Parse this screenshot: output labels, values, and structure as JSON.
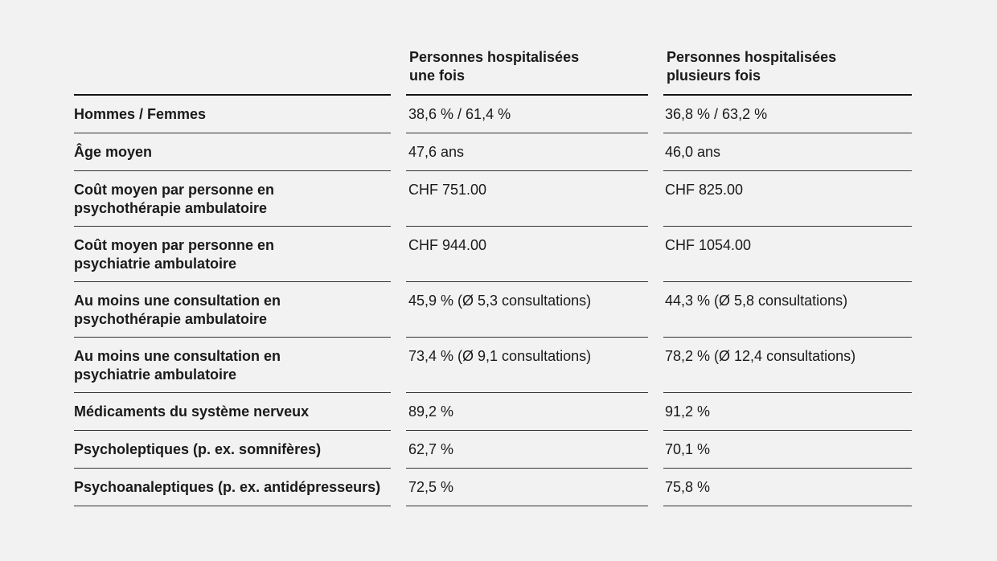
{
  "columns": [
    "",
    "Personnes hospitalisées\nune fois",
    "Personnes hospitalisées\nplusieurs fois"
  ],
  "rows": [
    {
      "label": "Hommes / Femmes",
      "once": "38,6 % / 61,4 %",
      "multiple": "36,8 % / 63,2 %"
    },
    {
      "label": "Âge moyen",
      "once": "47,6 ans",
      "multiple": "46,0 ans"
    },
    {
      "label": "Coût moyen par personne en\npsychothérapie ambulatoire",
      "once": "CHF 751.00",
      "multiple": "CHF 825.00"
    },
    {
      "label": "Coût moyen par personne en\npsychiatrie ambulatoire",
      "once": "CHF 944.00",
      "multiple": "CHF 1054.00"
    },
    {
      "label": "Au moins une consultation en\npsychothérapie ambulatoire",
      "once": "45,9 % (Ø 5,3 consultations)",
      "multiple": "44,3 % (Ø 5,8 consultations)"
    },
    {
      "label": "Au moins une consultation en\npsychiatrie ambulatoire",
      "once": "73,4 % (Ø 9,1 consultations)",
      "multiple": "78,2 % (Ø 12,4 consultations)"
    },
    {
      "label": "Médicaments du système nerveux",
      "once": "89,2 %",
      "multiple": "91,2 %"
    },
    {
      "label": "Psycholeptiques (p. ex. somnifères)",
      "once": "62,7 %",
      "multiple": "70,1 %"
    },
    {
      "label": "Psychoanaleptiques (p. ex. antidépresseurs)",
      "once": "72,5 %",
      "multiple": "75,8 %"
    }
  ]
}
